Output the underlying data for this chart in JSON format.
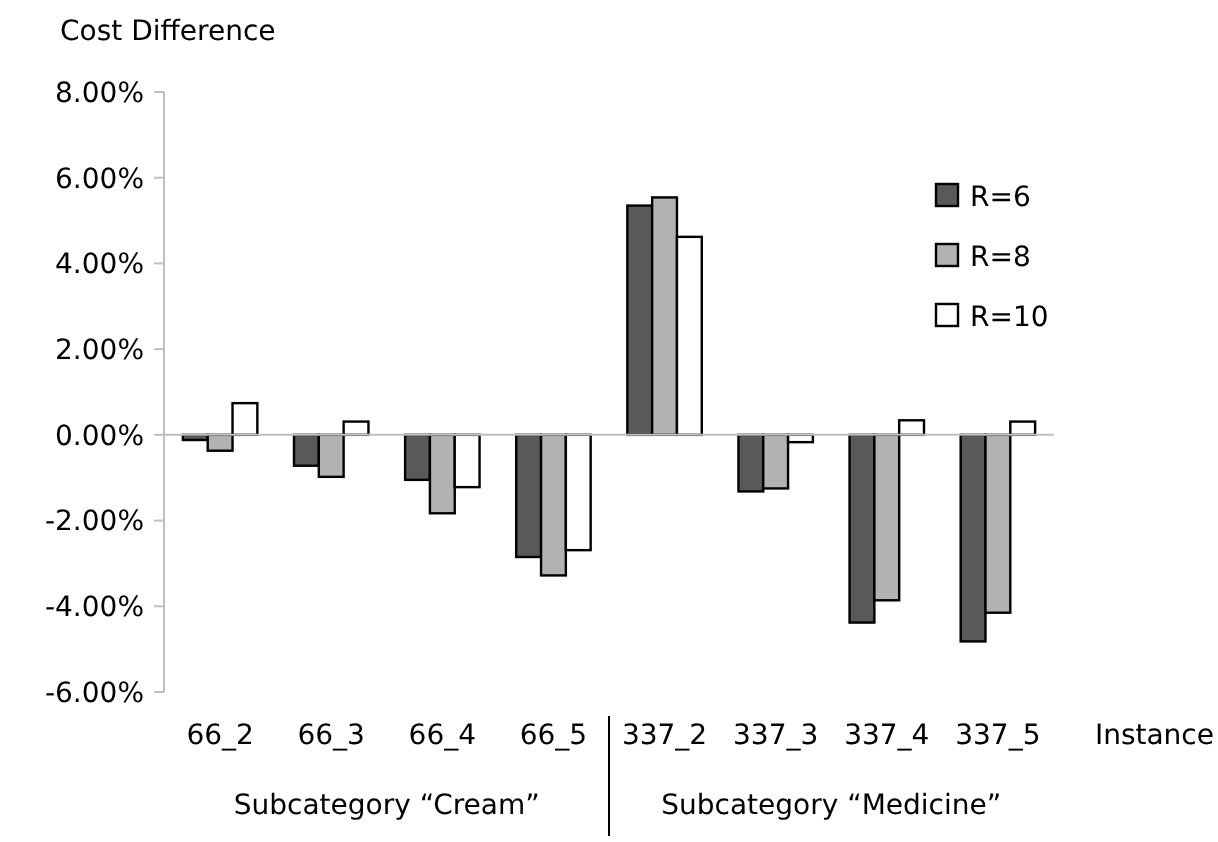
{
  "chart_data": {
    "type": "bar",
    "ylabel": "Cost Difference",
    "xlabel": "Instance",
    "categories": [
      "66_2",
      "66_3",
      "66_4",
      "66_5",
      "337_2",
      "337_3",
      "337_4",
      "337_5"
    ],
    "series": [
      {
        "name": "R=6",
        "color": "#595959",
        "values": [
          -0.12,
          -0.72,
          -1.05,
          -2.85,
          5.35,
          -1.32,
          -4.38,
          -4.82
        ]
      },
      {
        "name": "R=8",
        "color": "#b2b2b2",
        "values": [
          -0.37,
          -0.98,
          -1.83,
          -3.28,
          5.54,
          -1.25,
          -3.86,
          -4.15
        ]
      },
      {
        "name": "R=10",
        "color": "#ffffff",
        "values": [
          0.74,
          0.31,
          -1.22,
          -2.69,
          4.62,
          -0.17,
          0.34,
          0.31
        ]
      }
    ],
    "ylim": [
      -6,
      8
    ],
    "yticks": [
      {
        "value": -6,
        "label": "-6.00%"
      },
      {
        "value": -4,
        "label": "-4.00%"
      },
      {
        "value": -2,
        "label": "-2.00%"
      },
      {
        "value": 0,
        "label": "0.00%"
      },
      {
        "value": 2,
        "label": "2.00%"
      },
      {
        "value": 4,
        "label": "4.00%"
      },
      {
        "value": 6,
        "label": "6.00%"
      },
      {
        "value": 8,
        "label": "8.00%"
      }
    ],
    "annotations": [
      "Subcategory “Cream”",
      "Subcategory “Medicine”"
    ],
    "legend": "top right"
  }
}
